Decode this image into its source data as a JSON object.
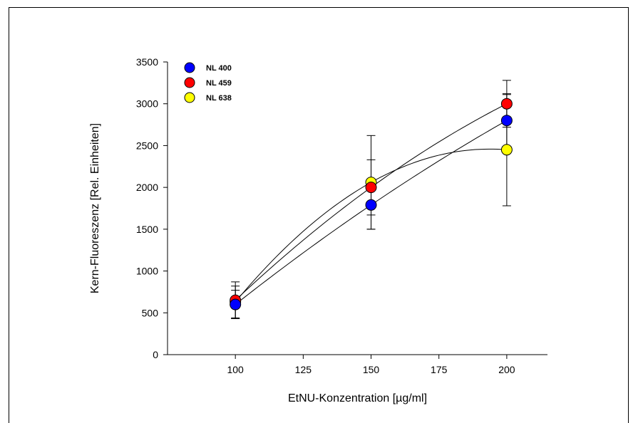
{
  "chart_data": {
    "type": "scatter",
    "xlabel": "EtNU-Konzentration [µg/ml]",
    "ylabel": "Kern-Fluoreszenz [Rel. Einheiten]",
    "xlim": [
      75,
      215
    ],
    "ylim": [
      0,
      3500
    ],
    "x_ticks": [
      100,
      125,
      150,
      175,
      200
    ],
    "y_ticks": [
      0,
      500,
      1000,
      1500,
      2000,
      2500,
      3000,
      3500
    ],
    "grid": false,
    "legend_position": "top-left",
    "x": [
      100,
      150,
      200
    ],
    "series": [
      {
        "name": "NL 400",
        "color": "#0000ff",
        "values": [
          600,
          1790,
          2800
        ],
        "errors": [
          170,
          290,
          310
        ]
      },
      {
        "name": "NL 459",
        "color": "#ff0000",
        "values": [
          650,
          2000,
          3000
        ],
        "errors": [
          220,
          330,
          280
        ]
      },
      {
        "name": "NL 638",
        "color": "#ffff00",
        "values": [
          630,
          2060,
          2450
        ],
        "errors": [
          190,
          560,
          670
        ]
      }
    ],
    "fit": "quadratic"
  }
}
